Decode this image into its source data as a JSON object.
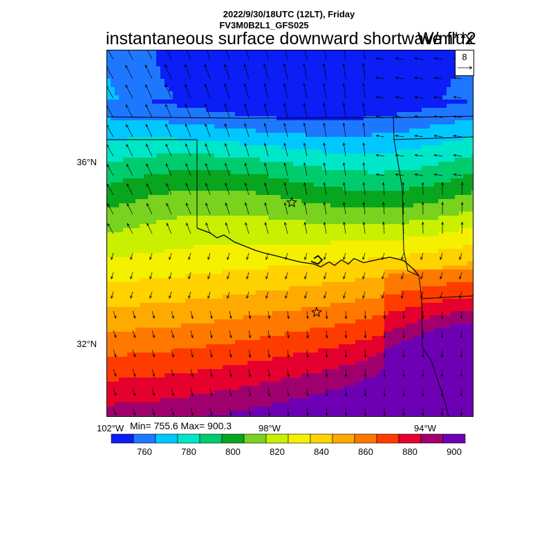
{
  "header": {
    "line1": "2022/9/30/18UTC (12LT), Friday",
    "line2": "FV3M0B2L1_GFS025"
  },
  "title": "instantaneous surface downward shortwave flux",
  "units": "W/m**2",
  "vector_reference": {
    "magnitude": "8"
  },
  "map": {
    "lat_labels": [
      "36°N",
      "32°N"
    ],
    "lon_labels": [
      "102°W",
      "98°W",
      "94°W"
    ],
    "stars": 2,
    "wind_pattern": "southerly flow north of the Red River, northerly flow south of it"
  },
  "stats": {
    "text": "Min= 755.6 Max= 900.3",
    "min": 755.6,
    "max": 900.3
  },
  "colorbar": {
    "levels": [
      760,
      780,
      800,
      820,
      840,
      860,
      880,
      900
    ],
    "colors": [
      "#0a1ef5",
      "#1e78ff",
      "#00c8ff",
      "#00e6c8",
      "#00cc6e",
      "#08a51e",
      "#78d21e",
      "#c8f000",
      "#f5f000",
      "#ffd200",
      "#ffaa00",
      "#ff7800",
      "#ff3c00",
      "#e6002d",
      "#a0006e",
      "#6e00b4"
    ]
  },
  "colors": {
    "border": "#000000",
    "background": "#ffffff"
  }
}
